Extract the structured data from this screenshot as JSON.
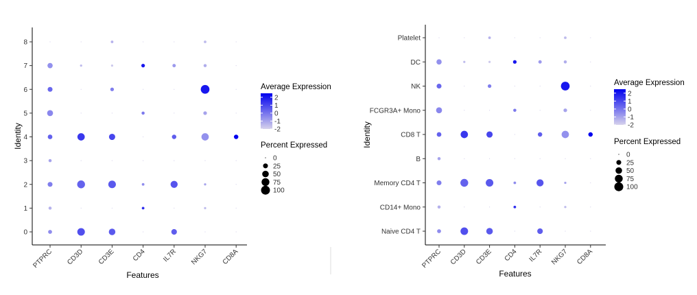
{
  "chart_data": [
    {
      "type": "scatter",
      "subtype": "dot-plot",
      "xlabel": "Features",
      "ylabel": "Identity",
      "features": [
        "PTPRC",
        "CD3D",
        "CD3E",
        "CD4",
        "IL7R",
        "NKG7",
        "CD8A"
      ],
      "identities": [
        "0",
        "1",
        "2",
        "3",
        "4",
        "5",
        "6",
        "7",
        "8"
      ],
      "average_expression": [
        [
          -0.5,
          0.8,
          0.6,
          -2,
          0.5,
          -2,
          -2
        ],
        [
          -1.3,
          -2,
          -2,
          1.5,
          -2,
          -1.5,
          -2
        ],
        [
          -0.2,
          0.4,
          0.6,
          -0.5,
          0.7,
          -1,
          -2
        ],
        [
          -1,
          -2,
          -2,
          -2,
          -2,
          -2,
          -2
        ],
        [
          0.4,
          1.3,
          1.0,
          -2,
          0.5,
          -0.6,
          2.5
        ],
        [
          -0.4,
          -2,
          -2,
          -0.1,
          -2,
          -1,
          -2
        ],
        [
          0.3,
          -2,
          -0.2,
          -2,
          -2,
          2.0,
          -2
        ],
        [
          -0.6,
          -1.5,
          -1.8,
          2.0,
          -0.8,
          -1.2,
          -2
        ],
        [
          -2,
          -2,
          -1.3,
          -2,
          -2,
          -1.5,
          -2
        ]
      ],
      "percent_expressed": [
        [
          15,
          70,
          50,
          0,
          35,
          0,
          0
        ],
        [
          8,
          0,
          0,
          5,
          0,
          3,
          0
        ],
        [
          25,
          75,
          70,
          5,
          60,
          3,
          0
        ],
        [
          8,
          0,
          0,
          0,
          0,
          0,
          0
        ],
        [
          22,
          65,
          45,
          0,
          20,
          65,
          20
        ],
        [
          40,
          0,
          0,
          8,
          0,
          12,
          0
        ],
        [
          25,
          0,
          12,
          0,
          0,
          95,
          0
        ],
        [
          30,
          3,
          3,
          12,
          10,
          8,
          0
        ],
        [
          0,
          0,
          5,
          0,
          0,
          5,
          0
        ]
      ],
      "color_range": [
        -2,
        2.5
      ],
      "colors": {
        "low": "#d6d2ec",
        "high": "#0000ee"
      },
      "legend": {
        "color_title": "Average Expression",
        "color_ticks": [
          "2",
          "1",
          "0",
          "-1",
          "-2"
        ],
        "size_title": "Percent Expressed",
        "size_ticks": [
          "0",
          "25",
          "50",
          "75",
          "100"
        ]
      }
    },
    {
      "type": "scatter",
      "subtype": "dot-plot",
      "xlabel": "Features",
      "ylabel": "Identity",
      "features": [
        "PTPRC",
        "CD3D",
        "CD3E",
        "CD4",
        "IL7R",
        "NKG7",
        "CD8A"
      ],
      "identities": [
        "Naive CD4 T",
        "CD14+ Mono",
        "Memory CD4 T",
        "B",
        "CD8 T",
        "FCGR3A+ Mono",
        "NK",
        "DC",
        "Platelet"
      ],
      "average_expression": [
        [
          -0.5,
          0.8,
          0.6,
          -2,
          0.5,
          -2,
          -2
        ],
        [
          -1.3,
          -2,
          -2,
          1.5,
          -2,
          -1.5,
          -2
        ],
        [
          -0.2,
          0.4,
          0.6,
          -0.5,
          0.7,
          -1,
          -2
        ],
        [
          -1,
          -2,
          -2,
          -2,
          -2,
          -2,
          -2
        ],
        [
          0.4,
          1.3,
          1.0,
          -2,
          0.5,
          -0.6,
          2.5
        ],
        [
          -0.4,
          -2,
          -2,
          -0.1,
          -2,
          -1,
          -2
        ],
        [
          0.3,
          -2,
          -0.2,
          -2,
          -2,
          2.0,
          -2
        ],
        [
          -0.6,
          -1.5,
          -1.8,
          2.0,
          -0.8,
          -1.2,
          -2
        ],
        [
          -2,
          -2,
          -1.3,
          -2,
          -2,
          -1.5,
          -2
        ]
      ],
      "percent_expressed": [
        [
          15,
          70,
          50,
          0,
          35,
          0,
          0
        ],
        [
          8,
          0,
          0,
          5,
          0,
          3,
          0
        ],
        [
          25,
          75,
          70,
          5,
          60,
          3,
          0
        ],
        [
          8,
          0,
          0,
          0,
          0,
          0,
          0
        ],
        [
          22,
          65,
          45,
          0,
          20,
          65,
          20
        ],
        [
          40,
          0,
          0,
          8,
          0,
          12,
          0
        ],
        [
          25,
          0,
          12,
          0,
          0,
          95,
          0
        ],
        [
          30,
          3,
          3,
          12,
          10,
          8,
          0
        ],
        [
          0,
          0,
          5,
          0,
          0,
          5,
          0
        ]
      ],
      "color_range": [
        -2,
        2.5
      ],
      "colors": {
        "low": "#d6d2ec",
        "high": "#0000ee"
      },
      "legend": {
        "color_title": "Average Expression",
        "color_ticks": [
          "2",
          "1",
          "0",
          "-1",
          "-2"
        ],
        "size_title": "Percent Expressed",
        "size_ticks": [
          "0",
          "25",
          "50",
          "75",
          "100"
        ]
      }
    }
  ]
}
